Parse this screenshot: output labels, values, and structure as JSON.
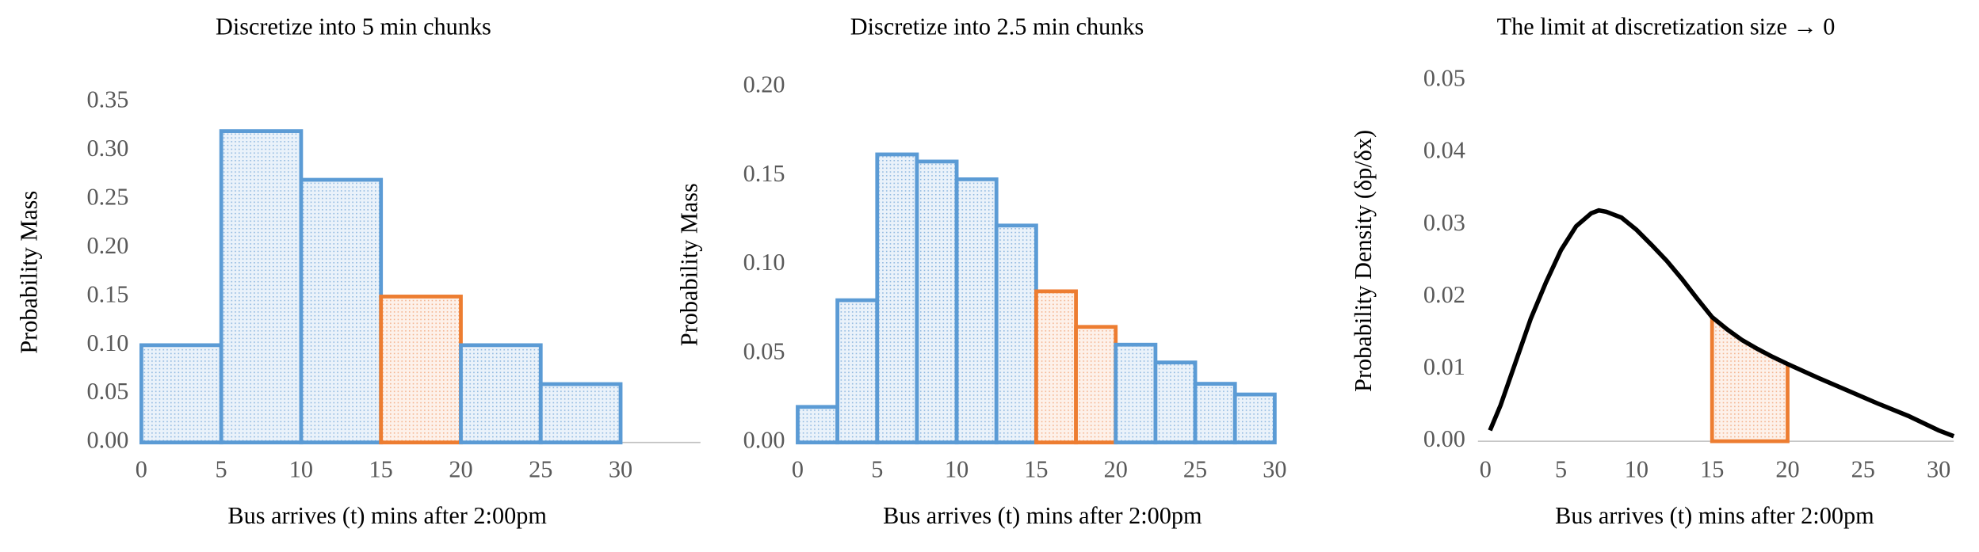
{
  "chart_data": [
    {
      "type": "histogram",
      "title": "Discretize into 5 min chunks",
      "xlabel": "Bus arrives (t) mins after 2:00pm",
      "ylabel": "Probability Mass",
      "bins": [
        0,
        5,
        10,
        15,
        20,
        25,
        30
      ],
      "values": [
        0.1,
        0.32,
        0.27,
        0.15,
        0.1,
        0.06
      ],
      "colors": [
        "#5b9bd5",
        "#5b9bd5",
        "#5b9bd5",
        "#ed7d31",
        "#5b9bd5",
        "#5b9bd5"
      ],
      "xlim": [
        0,
        35
      ],
      "xticks": [
        0,
        5,
        10,
        15,
        20,
        25,
        30
      ],
      "ylim": [
        0,
        0.35
      ],
      "yticks": [
        {
          "value": 0,
          "label": "0.00"
        },
        {
          "value": 0.05,
          "label": "0.05"
        },
        {
          "value": 0.1,
          "label": "0.10"
        },
        {
          "value": 0.15,
          "label": "0.15"
        },
        {
          "value": 0.2,
          "label": "0.20"
        },
        {
          "value": 0.25,
          "label": "0.25"
        },
        {
          "value": 0.3,
          "label": "0.30"
        },
        {
          "value": 0.35,
          "label": "0.35"
        }
      ]
    },
    {
      "type": "histogram",
      "title": "Discretize into 2.5 min chunks",
      "xlabel": "Bus arrives (t) mins after 2:00pm",
      "ylabel": "Probability Mass",
      "bins": [
        0,
        2.5,
        5,
        7.5,
        10,
        12.5,
        15,
        17.5,
        20,
        22.5,
        25,
        27.5,
        30
      ],
      "values": [
        0.02,
        0.08,
        0.162,
        0.158,
        0.148,
        0.122,
        0.085,
        0.065,
        0.055,
        0.045,
        0.033,
        0.027
      ],
      "colors": [
        "#5b9bd5",
        "#5b9bd5",
        "#5b9bd5",
        "#5b9bd5",
        "#5b9bd5",
        "#5b9bd5",
        "#ed7d31",
        "#ed7d31",
        "#5b9bd5",
        "#5b9bd5",
        "#5b9bd5",
        "#5b9bd5"
      ],
      "xlim": [
        0,
        30
      ],
      "xticks": [
        0,
        5,
        10,
        15,
        20,
        25,
        30
      ],
      "ylim": [
        0,
        0.2
      ],
      "yticks": [
        {
          "value": 0,
          "label": "0.00"
        },
        {
          "value": 0.05,
          "label": "0.05"
        },
        {
          "value": 0.1,
          "label": "0.10"
        },
        {
          "value": 0.15,
          "label": "0.15"
        },
        {
          "value": 0.2,
          "label": "0.20"
        }
      ]
    },
    {
      "type": "line",
      "title": "The limit at discretization size → 0",
      "xlabel": "Bus arrives (t) mins after 2:00pm",
      "ylabel": "Probability Density (δp/δx)",
      "x": [
        0.3,
        1,
        2,
        3,
        4,
        5,
        6,
        7,
        7.5,
        8,
        9,
        10,
        11,
        12,
        13,
        14,
        15,
        16,
        17,
        18,
        19,
        20,
        22,
        24,
        26,
        28,
        30,
        31
      ],
      "values": [
        0.0015,
        0.005,
        0.011,
        0.017,
        0.022,
        0.0265,
        0.0298,
        0.0316,
        0.032,
        0.0318,
        0.031,
        0.0293,
        0.0272,
        0.025,
        0.0225,
        0.0198,
        0.0172,
        0.0155,
        0.014,
        0.0128,
        0.0117,
        0.0107,
        0.0088,
        0.007,
        0.0052,
        0.0035,
        0.0015,
        0.0007
      ],
      "color": "#000000",
      "shade": {
        "from": 15,
        "to": 20,
        "color": "#ed7d31"
      },
      "xlim": [
        -0.5,
        31
      ],
      "xticks": [
        0,
        5,
        10,
        15,
        20,
        25,
        30
      ],
      "ylim": [
        0,
        0.05
      ],
      "yticks": [
        {
          "value": 0,
          "label": "0.00"
        },
        {
          "value": 0.01,
          "label": "0.01"
        },
        {
          "value": 0.02,
          "label": "0.02"
        },
        {
          "value": 0.03,
          "label": "0.03"
        },
        {
          "value": 0.04,
          "label": "0.04"
        },
        {
          "value": 0.05,
          "label": "0.05"
        }
      ]
    }
  ]
}
